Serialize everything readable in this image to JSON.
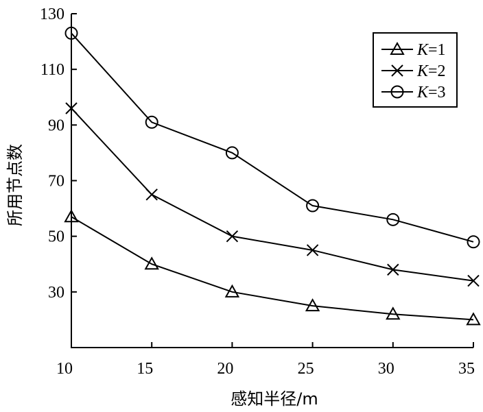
{
  "chart_data": {
    "type": "line",
    "xlabel": "感知半径/m",
    "ylabel": "所用节点数",
    "x_ticks": [
      10,
      15,
      20,
      25,
      30,
      35
    ],
    "y_ticks": [
      30,
      50,
      70,
      90,
      110,
      130
    ],
    "xlim": [
      10,
      35
    ],
    "ylim": [
      10,
      130
    ],
    "x": [
      10,
      15,
      20,
      25,
      30,
      35
    ],
    "grid": false,
    "legend_position": "top-right",
    "series": [
      {
        "name": "K=1",
        "legend_var": "K",
        "legend_val": "=1",
        "marker": "triangle",
        "values": [
          57,
          40,
          30,
          25,
          22,
          20
        ]
      },
      {
        "name": "K=2",
        "legend_var": "K",
        "legend_val": "=2",
        "marker": "x",
        "values": [
          96,
          65,
          50,
          45,
          38,
          34
        ]
      },
      {
        "name": "K=3",
        "legend_var": "K",
        "legend_val": "=3",
        "marker": "circle",
        "values": [
          123,
          91,
          80,
          61,
          56,
          48
        ]
      }
    ]
  }
}
